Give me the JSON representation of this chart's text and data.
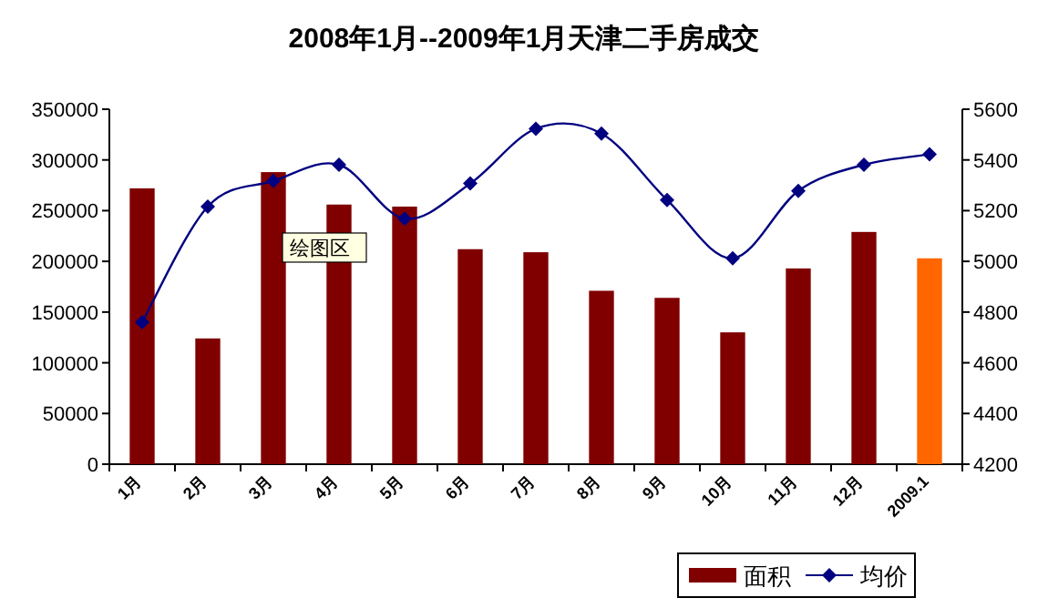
{
  "chart_data": {
    "type": "bar",
    "title": "2008年1月--2009年1月天津二手房成交",
    "categories": [
      "1月",
      "2月",
      "3月",
      "4月",
      "5月",
      "6月",
      "7月",
      "8月",
      "9月",
      "10月",
      "11月",
      "12月",
      "2009.1"
    ],
    "series": [
      {
        "name": "面积",
        "color": "#800000",
        "colors": [
          "#800000",
          "#800000",
          "#800000",
          "#800000",
          "#800000",
          "#800000",
          "#800000",
          "#800000",
          "#800000",
          "#800000",
          "#800000",
          "#800000",
          "#ff6600"
        ],
        "values": [
          272000,
          124000,
          288000,
          256000,
          254000,
          212000,
          209000,
          171000,
          164000,
          130000,
          193000,
          229000,
          203000
        ]
      },
      {
        "name": "均价",
        "type": "line",
        "axis": "y2",
        "color": "#000080",
        "marker": "diamond",
        "values": [
          4760,
          5216,
          5317,
          5381,
          5168,
          5307,
          5523,
          5504,
          5242,
          5012,
          5278,
          5381,
          5422
        ]
      }
    ],
    "ylim": [
      0,
      350000
    ],
    "yticks": [
      0,
      50000,
      100000,
      150000,
      200000,
      250000,
      300000,
      350000
    ],
    "y2lim": [
      4200,
      5600
    ],
    "y2ticks": [
      4200,
      4400,
      4600,
      4800,
      5000,
      5200,
      5400,
      5600
    ],
    "grid": false,
    "legend": "bottom right",
    "annotations": [
      "绘图区"
    ]
  }
}
